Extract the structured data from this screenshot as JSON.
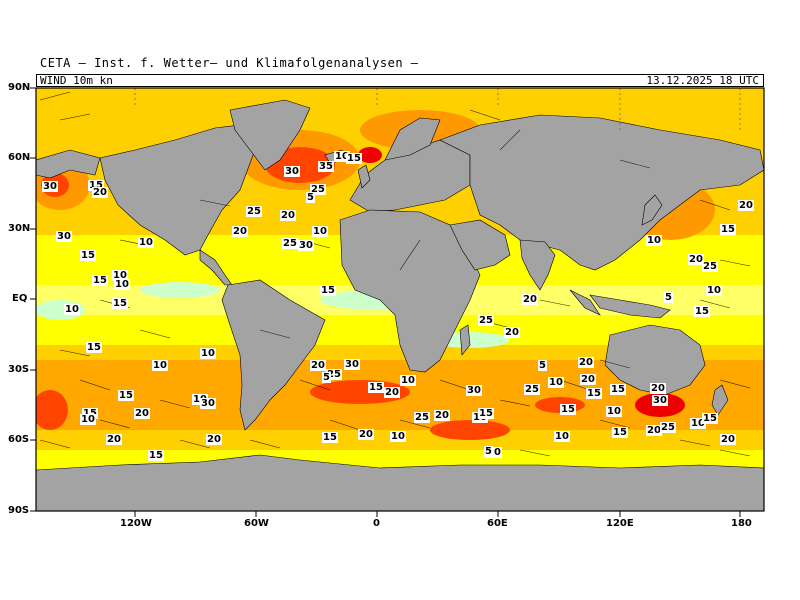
{
  "header": {
    "institute": "CETA — Inst. f. Wetter— und Klimafolgenanalysen —",
    "field": "WIND  10m  kn",
    "datetime": "13.12.2025  18  UTC"
  },
  "axes": {
    "lat_labels": [
      "90N",
      "60N",
      "30N",
      "EQ",
      "30S",
      "60S",
      "90S"
    ],
    "lon_labels": [
      "120W",
      "60W",
      "0",
      "60E",
      "120E",
      "180"
    ]
  },
  "colors": {
    "land": "#a3a3a3",
    "calm": "#ffffff",
    "light": "#ccffcc",
    "moderate": "#ffff00",
    "fresh": "#ffd000",
    "strong": "#ff9900",
    "gale": "#ff4400",
    "storm": "#ee0000",
    "violent": "#ff0080"
  },
  "speed_labels": [
    "30",
    "15",
    "20",
    "30",
    "10",
    "15",
    "15",
    "10",
    "10",
    "15",
    "10",
    "15",
    "10",
    "10",
    "15",
    "20",
    "15",
    "10",
    "20",
    "15",
    "20",
    "10",
    "30",
    "25",
    "20",
    "30",
    "35",
    "25",
    "5",
    "10",
    "15",
    "20",
    "25",
    "30",
    "10",
    "15",
    "20",
    "25",
    "30",
    "5",
    "10",
    "15",
    "20",
    "25",
    "20",
    "30",
    "10",
    "15",
    "20",
    "25",
    "5",
    "10",
    "15",
    "20",
    "25",
    "20",
    "15",
    "10",
    "15",
    "20",
    "10",
    "15",
    "20",
    "25",
    "10",
    "15",
    "20",
    "30",
    "10",
    "20",
    "25",
    "15",
    "20",
    "5",
    "10",
    "15",
    "15",
    "20",
    "15",
    "5",
    "10",
    "20",
    "20"
  ]
}
